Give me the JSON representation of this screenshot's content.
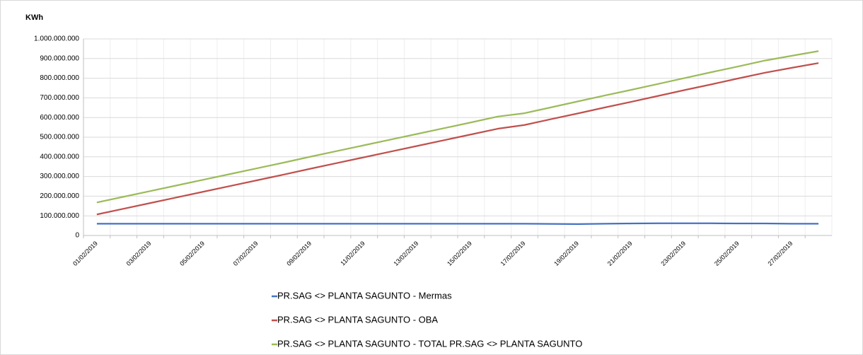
{
  "chart_data": {
    "type": "line",
    "title": "KWh",
    "categories": [
      "01/02/2019",
      null,
      "03/02/2019",
      null,
      "05/02/2019",
      null,
      "07/02/2019",
      null,
      "09/02/2019",
      null,
      "11/02/2019",
      null,
      "13/02/2019",
      null,
      "15/02/2019",
      null,
      "17/02/2019",
      null,
      "19/02/2019",
      null,
      "21/02/2019",
      null,
      "23/02/2019",
      null,
      "25/02/2019",
      null,
      "27/02/2019",
      null
    ],
    "series": [
      {
        "name": "PR.SAG <> PLANTA SAGUNTO - Mermas",
        "color": "#4472c4",
        "values": [
          60000000,
          60000000,
          60000000,
          60000000,
          60000000,
          60000000,
          60000000,
          60000000,
          60000000,
          60000000,
          60000000,
          60000000,
          60000000,
          60000000,
          60000000,
          60000000,
          60000000,
          59000000,
          58000000,
          60000000,
          61000000,
          62000000,
          62000000,
          62000000,
          61000000,
          61000000,
          60000000,
          60000000
        ]
      },
      {
        "name": "PR.SAG <> PLANTA SAGUNTO - OBA",
        "color": "#c0504d",
        "values": [
          107000000,
          136000000,
          165000000,
          194000000,
          223000000,
          252000000,
          281000000,
          310000000,
          340000000,
          369000000,
          398000000,
          427000000,
          456000000,
          485000000,
          514000000,
          543000000,
          562000000,
          592000000,
          621000000,
          651000000,
          680000000,
          710000000,
          740000000,
          769000000,
          799000000,
          828000000,
          853000000,
          877000000
        ]
      },
      {
        "name": "PR.SAG <> PLANTA SAGUNTO - TOTAL PR.SAG <> PLANTA SAGUNTO",
        "color": "#9bbb59",
        "values": [
          168000000,
          197000000,
          226000000,
          255000000,
          284000000,
          313000000,
          342000000,
          371000000,
          401000000,
          430000000,
          459000000,
          488000000,
          517000000,
          546000000,
          575000000,
          605000000,
          622000000,
          652000000,
          682000000,
          712000000,
          741000000,
          771000000,
          801000000,
          831000000,
          860000000,
          890000000,
          914000000,
          938000000
        ]
      }
    ],
    "ylim": [
      0,
      1000000000
    ],
    "yticks": [
      0,
      {
        "value": 100000000,
        "label": "100.000.000"
      },
      {
        "value": 200000000,
        "label": "200.000.000"
      },
      {
        "value": 300000000,
        "label": "300.000.000"
      },
      {
        "value": 400000000,
        "label": "400.000.000"
      },
      {
        "value": 500000000,
        "label": "500.000.000"
      },
      {
        "value": 600000000,
        "label": "600.000.000"
      },
      {
        "value": 700000000,
        "label": "700.000.000"
      },
      {
        "value": 800000000,
        "label": "800.000.000"
      },
      {
        "value": 900000000,
        "label": "900.000.000"
      },
      {
        "value": 1000000000,
        "label": "1.000.000.000"
      }
    ],
    "grid": true
  }
}
